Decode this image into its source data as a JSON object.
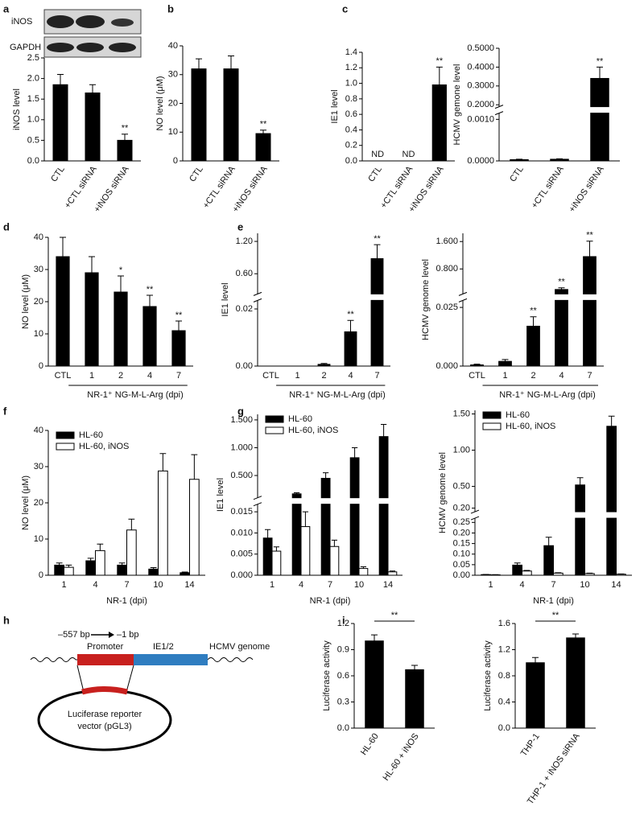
{
  "panel_labels": [
    "a",
    "b",
    "c",
    "d",
    "e",
    "f",
    "g",
    "h",
    "i"
  ],
  "diagram": {
    "left_position": "–557 bp",
    "right_position": "–1 bp",
    "promoter": "Promoter",
    "gene": "IE1/2",
    "genome": "HCMV genome",
    "vector": [
      "Luciferase reporter",
      "vector (pGL3)"
    ]
  },
  "chart_data": [
    {
      "type": "bar",
      "blot_labels": [
        "iNOS",
        "GAPDH"
      ],
      "ylabel": "iNOS level",
      "categories": [
        "CTL",
        "+CTL siRNA",
        "+iNOS siRNA"
      ],
      "segments": [
        {
          "ylim": [
            0,
            2.5
          ],
          "yticks": [
            {
              "value": 0,
              "label": "0.0"
            },
            0.5,
            {
              "value": 1,
              "label": "1.0"
            },
            1.5,
            {
              "value": 2,
              "label": "2.0"
            },
            2.5
          ]
        }
      ],
      "series": [
        {
          "color": "#000000",
          "values": [
            1.85,
            1.65,
            0.5
          ],
          "errors": [
            0.25,
            0.2,
            0.15
          ]
        }
      ],
      "annotations": [
        null,
        null,
        "**"
      ]
    },
    {
      "type": "bar",
      "ylabel": "NO level (μM)",
      "categories": [
        "CTL",
        "+CTL siRNA",
        "+iNOS siRNA"
      ],
      "segments": [
        {
          "ylim": [
            0,
            40
          ],
          "yticks": [
            0,
            10,
            20,
            30,
            40
          ]
        }
      ],
      "series": [
        {
          "color": "#000000",
          "values": [
            32,
            32,
            9.5
          ],
          "errors": [
            3.5,
            4.5,
            1.2
          ]
        }
      ],
      "annotations": [
        null,
        null,
        "**"
      ]
    },
    {
      "type": "bar",
      "ylabel": "IE1 level",
      "categories": [
        "CTL",
        "+CTL siRNA",
        "+iNOS siRNA"
      ],
      "segments": [
        {
          "ylim": [
            0,
            1.4
          ],
          "yticks": [
            {
              "value": 0,
              "label": "0.0"
            },
            0.2,
            0.4,
            0.6,
            0.8,
            {
              "value": 1,
              "label": "1.0"
            },
            1.2,
            1.4
          ]
        }
      ],
      "series": [
        {
          "color": "#000000",
          "values": [
            null,
            null,
            0.98
          ],
          "errors": [
            null,
            null,
            0.23
          ]
        }
      ],
      "annotations": [
        "ND",
        "ND",
        "**"
      ]
    },
    {
      "type": "bar",
      "ylabel": "HCMV gemone level",
      "categories": [
        "CTL",
        "+CTL siRNA",
        "+iNOS siRNA"
      ],
      "segments": [
        {
          "ylim": [
            0,
            0.00115
          ],
          "yticks": [
            {
              "value": 0,
              "label": "0.0000"
            },
            {
              "value": 0.001,
              "label": "0.0010"
            }
          ]
        },
        {
          "ylim": [
            0.19,
            0.5
          ],
          "yticks": [
            {
              "value": 0.2,
              "label": "0.2000"
            },
            {
              "value": 0.3,
              "label": "0.3000"
            },
            {
              "value": 0.4,
              "label": "0.4000"
            },
            {
              "value": 0.5,
              "label": "0.5000"
            }
          ]
        }
      ],
      "series": [
        {
          "color": "#000000",
          "values": [
            3e-05,
            4e-05,
            0.34
          ],
          "errors": [
            1e-05,
            1e-05,
            0.06
          ]
        }
      ],
      "annotations": [
        null,
        null,
        "**"
      ]
    },
    {
      "type": "bar",
      "ylabel": "NO level (μM)",
      "xlabel": "NR-1⁺ NG-M-L-Arg (dpi)",
      "categories": [
        "CTL",
        "1",
        "2",
        "4",
        "7"
      ],
      "segments": [
        {
          "ylim": [
            0,
            40
          ],
          "yticks": [
            0,
            10,
            20,
            30,
            40
          ]
        }
      ],
      "series": [
        {
          "color": "#000000",
          "values": [
            34,
            29,
            23,
            18.5,
            11
          ],
          "errors": [
            6,
            5,
            5,
            3.5,
            3
          ]
        }
      ],
      "annotations": [
        null,
        null,
        "*",
        "**",
        "**"
      ]
    },
    {
      "type": "bar",
      "ylabel": "IE1 level",
      "xlabel": "NR-1⁺ NG-M-L-Arg (dpi)",
      "categories": [
        "CTL",
        "1",
        "2",
        "4",
        "7"
      ],
      "segments": [
        {
          "ylim": [
            0,
            0.023
          ],
          "yticks": [
            {
              "value": 0,
              "label": "0.00"
            },
            0.02
          ]
        },
        {
          "ylim": [
            0.225,
            1.35
          ],
          "yticks": [
            {
              "value": 0.6,
              "label": "0.60"
            },
            {
              "value": 1.2,
              "label": "1.20"
            }
          ]
        }
      ],
      "series": [
        {
          "color": "#000000",
          "values": [
            0,
            0,
            0.0006,
            0.012,
            0.88
          ],
          "errors": [
            null,
            null,
            0.0003,
            0.004,
            0.26
          ]
        }
      ],
      "annotations": [
        null,
        null,
        null,
        "**",
        "**"
      ]
    },
    {
      "type": "bar",
      "ylabel": "HCMV genome level",
      "xlabel": "NR-1⁺ NG-M-L-Arg (dpi)",
      "categories": [
        "CTL",
        "1",
        "2",
        "4",
        "7"
      ],
      "segments": [
        {
          "ylim": [
            0,
            0.028
          ],
          "yticks": [
            {
              "value": 0,
              "label": "0.000"
            },
            {
              "value": 0.025,
              "label": "0.025"
            }
          ]
        },
        {
          "ylim": [
            0.07,
            1.84
          ],
          "yticks": [
            {
              "value": 0.8,
              "label": "0.800"
            },
            {
              "value": 1.6,
              "label": "1.600"
            }
          ]
        }
      ],
      "series": [
        {
          "color": "#000000",
          "values": [
            0.0005,
            0.002,
            0.017,
            0.2,
            1.16
          ],
          "errors": [
            0.0003,
            0.0008,
            0.004,
            0.05,
            0.45
          ]
        }
      ],
      "annotations": [
        null,
        null,
        "**",
        "**",
        "**"
      ]
    },
    {
      "type": "bar",
      "ylabel": "NO level (μM)",
      "xlabel": "NR-1 (dpi)",
      "legend": "upper left",
      "categories": [
        "1",
        "4",
        "7",
        "10",
        "14"
      ],
      "segments": [
        {
          "ylim": [
            0,
            40
          ],
          "yticks": [
            0,
            10,
            20,
            30,
            40
          ]
        }
      ],
      "series": [
        {
          "name": "HL-60",
          "color": "#000000",
          "values": [
            2.8,
            4,
            2.8,
            1.7,
            0.7
          ],
          "errors": [
            0.6,
            0.7,
            0.6,
            0.4,
            0.2
          ]
        },
        {
          "name": "HL-60, iNOS",
          "color": "#ffffff",
          "values": [
            2.2,
            6.8,
            12.5,
            28.8,
            26.5
          ],
          "errors": [
            0.6,
            1.8,
            3,
            4.8,
            6.8
          ]
        }
      ]
    },
    {
      "type": "bar",
      "ylabel": "IE1 level",
      "xlabel": "NR-1 (dpi)",
      "legend": "upper left",
      "categories": [
        "1",
        "4",
        "7",
        "10",
        "14"
      ],
      "segments": [
        {
          "ylim": [
            0,
            0.0168
          ],
          "yticks": [
            {
              "value": 0,
              "label": "0.000"
            },
            0.005,
            {
              "value": 0.01,
              "label": "0.010"
            },
            0.015
          ]
        },
        {
          "ylim": [
            0.1,
            1.6
          ],
          "yticks": [
            {
              "value": 0.5,
              "label": "0.500"
            },
            {
              "value": 1,
              "label": "1.000"
            },
            {
              "value": 1.5,
              "label": "1.500"
            }
          ]
        }
      ],
      "series": [
        {
          "name": "HL-60",
          "color": "#000000",
          "values": [
            0.0088,
            0.17,
            0.45,
            0.82,
            1.2
          ],
          "errors": [
            0.002,
            0.02,
            0.1,
            0.18,
            0.22
          ]
        },
        {
          "name": "HL-60, iNOS",
          "color": "#ffffff",
          "values": [
            0.0057,
            0.0115,
            0.0068,
            0.0016,
            0.0008
          ],
          "errors": [
            0.001,
            0.0035,
            0.0015,
            0.0004,
            0.0002
          ]
        }
      ]
    },
    {
      "type": "bar",
      "ylabel": "HCMV genome level",
      "xlabel": "NR-1 (dpi)",
      "legend": "upper left",
      "categories": [
        "1",
        "4",
        "7",
        "10",
        "14"
      ],
      "segments": [
        {
          "ylim": [
            0,
            0.27
          ],
          "yticks": [
            {
              "value": 0,
              "label": "0.00"
            },
            0.05,
            {
              "value": 0.1,
              "label": "0.10"
            },
            0.15,
            {
              "value": 0.2,
              "label": "0.20"
            },
            0.25
          ]
        },
        {
          "ylim": [
            0.15,
            1.55
          ],
          "yticks": [
            {
              "value": 0.2,
              "label": "0.20"
            },
            {
              "value": 0.5,
              "label": "0.50"
            },
            {
              "value": 1,
              "label": "1.00"
            },
            {
              "value": 1.5,
              "label": "1.50"
            }
          ]
        }
      ],
      "series": [
        {
          "name": "HL-60",
          "color": "#000000",
          "values": [
            0.003,
            0.048,
            0.14,
            0.52,
            1.33
          ],
          "errors": [
            0.001,
            0.01,
            0.04,
            0.1,
            0.14
          ]
        },
        {
          "name": "HL-60, iNOS",
          "color": "#ffffff",
          "values": [
            0.002,
            0.02,
            0.01,
            0.008,
            0.005
          ],
          "errors": [
            0.001,
            0.003,
            0.002,
            0.002,
            0.001
          ]
        }
      ]
    },
    {
      "type": "bar",
      "ylabel": "Luciferase activity",
      "significance": "**",
      "categories": [
        "HL-60",
        "HL-60 + iNOS"
      ],
      "segments": [
        {
          "ylim": [
            0,
            1.2
          ],
          "yticks": [
            {
              "value": 0,
              "label": "0.0"
            },
            0.3,
            0.6,
            0.9,
            1.2
          ]
        }
      ],
      "series": [
        {
          "color": "#000000",
          "values": [
            1.0,
            0.67
          ],
          "errors": [
            0.07,
            0.05
          ]
        }
      ]
    },
    {
      "type": "bar",
      "ylabel": "Luciferase activity",
      "significance": "**",
      "categories": [
        "THP-1",
        "THP-1 + iNOS siRNA"
      ],
      "segments": [
        {
          "ylim": [
            0,
            1.6
          ],
          "yticks": [
            {
              "value": 0,
              "label": "0.0"
            },
            0.4,
            0.8,
            1.2,
            1.6
          ]
        }
      ],
      "series": [
        {
          "color": "#000000",
          "values": [
            1.0,
            1.38
          ],
          "errors": [
            0.08,
            0.06
          ]
        }
      ]
    }
  ]
}
